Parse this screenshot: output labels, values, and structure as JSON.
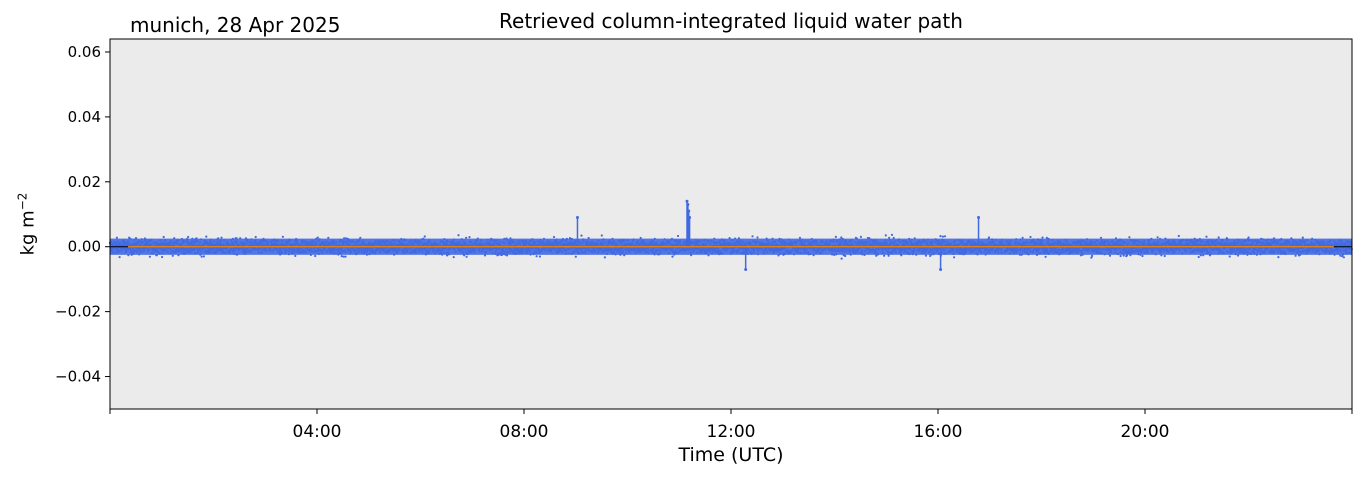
{
  "header": {
    "site_label": "munich, 28 Apr 2025"
  },
  "chart_data": {
    "type": "scatter",
    "title": "Retrieved column-integrated liquid water path",
    "xlabel": "Time (UTC)",
    "ylabel": "kg m−2",
    "ylabel_base": "kg m",
    "ylabel_exp": "−2",
    "xlim_hours": [
      0,
      24
    ],
    "ylim": [
      -0.05,
      0.064
    ],
    "x_ticks": [
      "04:00",
      "08:00",
      "12:00",
      "16:00",
      "20:00"
    ],
    "x_tick_hours": [
      4,
      8,
      12,
      16,
      20
    ],
    "y_ticks": [
      "−0.04",
      "−0.02",
      "0.00",
      "0.02",
      "0.04",
      "0.06"
    ],
    "y_tick_values": [
      -0.04,
      -0.02,
      0.0,
      0.02,
      0.04,
      0.06
    ],
    "grid": false,
    "background_color": "#ebebeb",
    "series": [
      {
        "role": "retrieved liquid water path (scatter)",
        "color": "#4169e1",
        "noise_band": [
          -0.004,
          0.004
        ],
        "spikes": [
          {
            "time": "09:02",
            "value": 0.009
          },
          {
            "time": "11:09",
            "value": 0.014
          },
          {
            "time": "11:10",
            "value": 0.013
          },
          {
            "time": "11:11",
            "value": 0.011
          },
          {
            "time": "11:12",
            "value": 0.009
          },
          {
            "time": "16:47",
            "value": 0.009
          },
          {
            "time": "12:17",
            "value": -0.007
          },
          {
            "time": "16:03",
            "value": -0.007
          }
        ]
      },
      {
        "role": "smoothed mean (line)",
        "color": "#ff8c00",
        "value": 0.0
      },
      {
        "role": "zero reference (line)",
        "color": "#000000",
        "value": 0.0
      }
    ]
  }
}
